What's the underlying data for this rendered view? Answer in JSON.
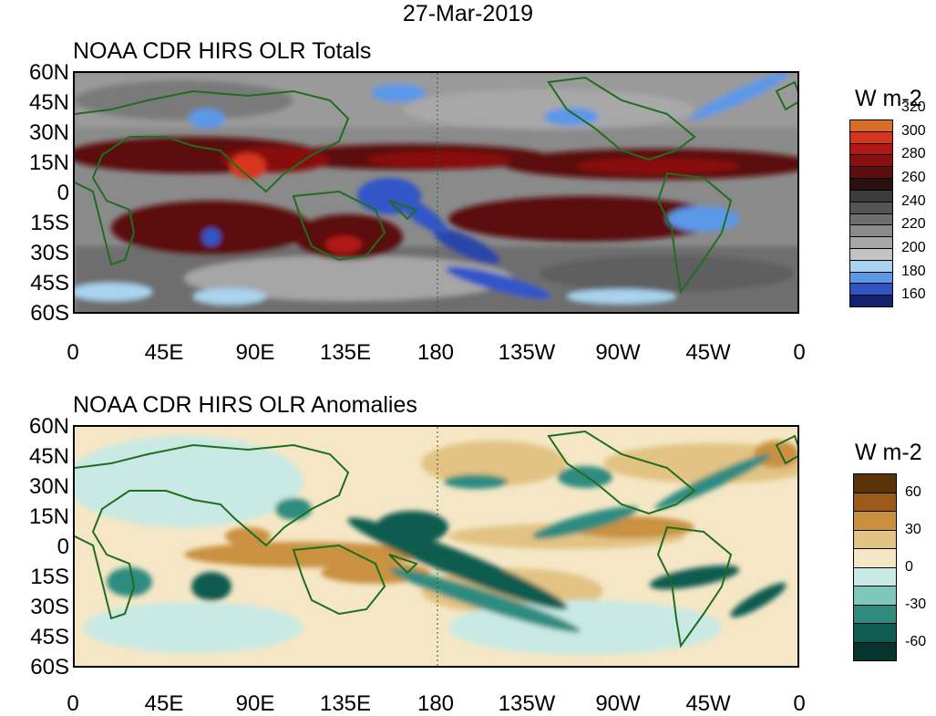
{
  "main_title": "27-Mar-2019",
  "panels": [
    {
      "title": "NOAA CDR HIRS OLR Totals",
      "legend_title": "W m-2",
      "legend_colors": [
        "#14216e",
        "#3054c8",
        "#5b98e8",
        "#a9d3ee",
        "#c3c3c3",
        "#a6a6a6",
        "#8a8a8a",
        "#6e6e6e",
        "#555555",
        "#3c3c3c",
        "#2a1010",
        "#5c0c0c",
        "#8a0f0f",
        "#b21616",
        "#d8341c",
        "#d86c2a"
      ],
      "legend_labels": [
        "160",
        "180",
        "200",
        "220",
        "240",
        "260",
        "280",
        "300",
        "320"
      ]
    },
    {
      "title": "NOAA CDR HIRS OLR Anomalies",
      "legend_title": "W m-2",
      "legend_colors": [
        "#05352c",
        "#0f5c50",
        "#2f8b80",
        "#7dc7bd",
        "#c8e9e4",
        "#f5e7c6",
        "#e2c383",
        "#c9913f",
        "#9a5a1a",
        "#5a3208"
      ],
      "legend_labels": [
        "-60",
        "-30",
        "0",
        "30",
        "60"
      ]
    }
  ],
  "lat_labels": [
    "60N",
    "45N",
    "30N",
    "15N",
    "0",
    "15S",
    "30S",
    "45S",
    "60S"
  ],
  "lon_labels": [
    "0",
    "45E",
    "90E",
    "135E",
    "180",
    "135W",
    "90W",
    "45W",
    "0"
  ]
}
